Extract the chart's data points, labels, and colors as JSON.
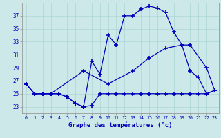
{
  "title": "Graphe des températures (°c)",
  "background_color": "#cce8e8",
  "line_color": "#0000bb",
  "xlim": [
    -0.5,
    23.5
  ],
  "ylim": [
    22.0,
    39.0
  ],
  "yticks": [
    23,
    25,
    27,
    29,
    31,
    33,
    35,
    37
  ],
  "xticks": [
    0,
    1,
    2,
    3,
    4,
    5,
    6,
    7,
    8,
    9,
    10,
    11,
    12,
    13,
    14,
    15,
    16,
    17,
    18,
    19,
    20,
    21,
    22,
    23
  ],
  "series1_x": [
    0,
    1,
    2,
    3,
    4,
    5,
    6,
    7,
    8,
    9,
    10,
    11,
    12,
    13,
    14,
    15,
    16,
    17,
    18,
    19,
    20,
    21,
    22,
    23
  ],
  "series1_y": [
    26.5,
    25.0,
    25.0,
    25.0,
    25.0,
    24.5,
    23.5,
    23.0,
    23.2,
    25.0,
    25.0,
    25.0,
    25.0,
    25.0,
    25.0,
    25.0,
    25.0,
    25.0,
    25.0,
    25.0,
    25.0,
    25.0,
    25.0,
    25.5
  ],
  "series2_x": [
    0,
    1,
    2,
    3,
    4,
    5,
    6,
    7,
    8,
    9,
    10,
    11,
    12,
    13,
    14,
    15,
    16,
    17,
    18,
    19,
    20,
    21,
    22,
    23
  ],
  "series2_y": [
    26.5,
    25.0,
    25.0,
    25.0,
    25.0,
    24.5,
    23.5,
    23.0,
    30.0,
    28.0,
    34.0,
    32.5,
    37.0,
    37.0,
    38.0,
    38.5,
    38.2,
    37.5,
    34.5,
    32.5,
    28.5,
    27.5,
    25.0,
    25.5
  ],
  "series3_x": [
    0,
    1,
    3,
    7,
    10,
    13,
    15,
    17,
    19,
    20,
    22,
    23
  ],
  "series3_y": [
    26.5,
    25.0,
    25.0,
    28.5,
    26.5,
    28.5,
    30.5,
    32.0,
    32.5,
    32.5,
    29.0,
    25.5
  ]
}
